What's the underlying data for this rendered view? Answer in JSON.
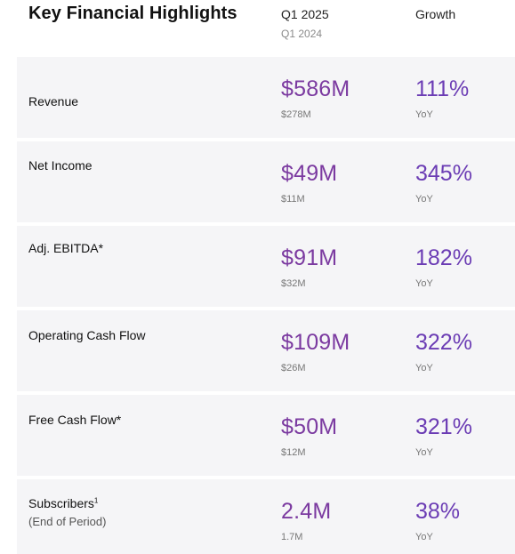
{
  "header": {
    "title": "Key Financial Highlights",
    "period": "Q1 2025",
    "prior_period": "Q1 2024",
    "growth_col": "Growth"
  },
  "rows": [
    {
      "label": "Revenue",
      "value": "$586M",
      "prior": "$278M",
      "growth": "111%",
      "growth_unit": "YoY"
    },
    {
      "label": "Net Income",
      "value": "$49M",
      "prior": "$11M",
      "growth": "345%",
      "growth_unit": "YoY"
    },
    {
      "label": "Adj. EBITDA*",
      "value": "$91M",
      "prior": "$32M",
      "growth": "182%",
      "growth_unit": "YoY"
    },
    {
      "label": "Operating Cash Flow",
      "value": "$109M",
      "prior": "$26M",
      "growth": "322%",
      "growth_unit": "YoY"
    },
    {
      "label": "Free Cash Flow*",
      "value": "$50M",
      "prior": "$12M",
      "growth": "321%",
      "growth_unit": "YoY"
    },
    {
      "label": "Subscribers",
      "footnote": "1",
      "sublabel": "(End of Period)",
      "value": "2.4M",
      "prior": "1.7M",
      "growth": "38%",
      "growth_unit": "YoY"
    }
  ],
  "colors": {
    "value_purple": "#7b3aa0",
    "growth_purple": "#6b3cb4",
    "row_background": "#f5f5f7"
  }
}
